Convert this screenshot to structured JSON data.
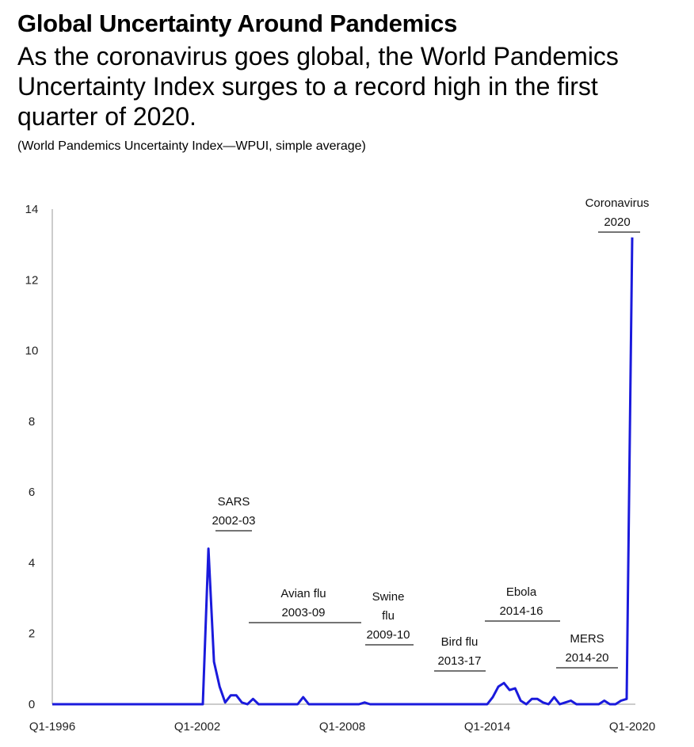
{
  "header": {
    "title": "Global Uncertainty Around Pandemics",
    "subtitle": "As the coronavirus goes global, the World Pandemics Uncertainty Index surges to a record high in the first quarter of 2020.",
    "note": "(World Pandemics Uncertainty Index—WPUI, simple average)"
  },
  "chart_data": {
    "type": "line",
    "title": "Global Uncertainty Around Pandemics",
    "xlabel": "",
    "ylabel": "",
    "ylim": [
      0,
      14
    ],
    "yticks": [
      0,
      2,
      4,
      6,
      8,
      10,
      12,
      14
    ],
    "xticks": [
      {
        "label": "Q1-1996",
        "index": 0
      },
      {
        "label": "Q1-2002",
        "index": 24
      },
      {
        "label": "Q1-2008",
        "index": 48
      },
      {
        "label": "Q1-2014",
        "index": 72
      },
      {
        "label": "Q1-2020",
        "index": 96
      }
    ],
    "grid": false,
    "line_color": "#1a1adc",
    "series": [
      {
        "name": "",
        "values": [
          0,
          0,
          0,
          0,
          0,
          0,
          0,
          0,
          0,
          0,
          0,
          0,
          0,
          0,
          0,
          0,
          0,
          0,
          0,
          0,
          0,
          0,
          0,
          0,
          0,
          0,
          0,
          0,
          4.4,
          1.2,
          0.5,
          0.05,
          0.25,
          0.25,
          0.05,
          0,
          0.15,
          0,
          0,
          0,
          0,
          0,
          0,
          0,
          0,
          0.2,
          0,
          0,
          0,
          0,
          0,
          0,
          0,
          0,
          0,
          0,
          0.05,
          0,
          0,
          0,
          0,
          0,
          0,
          0,
          0,
          0,
          0,
          0,
          0,
          0,
          0,
          0,
          0,
          0,
          0,
          0,
          0,
          0,
          0,
          0.2,
          0.5,
          0.6,
          0.4,
          0.45,
          0.1,
          0,
          0.15,
          0.15,
          0.05,
          0,
          0.2,
          0,
          0.05,
          0.1,
          0,
          0,
          0,
          0,
          0,
          0.1,
          0,
          0,
          0.1,
          0.15,
          13.2
        ]
      }
    ],
    "annotations": [
      {
        "lines": [
          "SARS",
          "2002-03"
        ],
        "value_x": 28
      },
      {
        "lines": [
          "Avian flu",
          "2003-09"
        ],
        "value_x": 39
      },
      {
        "lines": [
          "Swine",
          "flu",
          "2009-10"
        ],
        "value_x": 52
      },
      {
        "lines": [
          "Bird flu",
          "2013-17"
        ],
        "value_x": 69
      },
      {
        "lines": [
          "Ebola",
          "2014-16"
        ],
        "value_x": 79
      },
      {
        "lines": [
          "MERS",
          "2014-20"
        ],
        "value_x": 90
      },
      {
        "lines": [
          "Coronavirus",
          "2020"
        ],
        "value_x": 96
      }
    ]
  }
}
